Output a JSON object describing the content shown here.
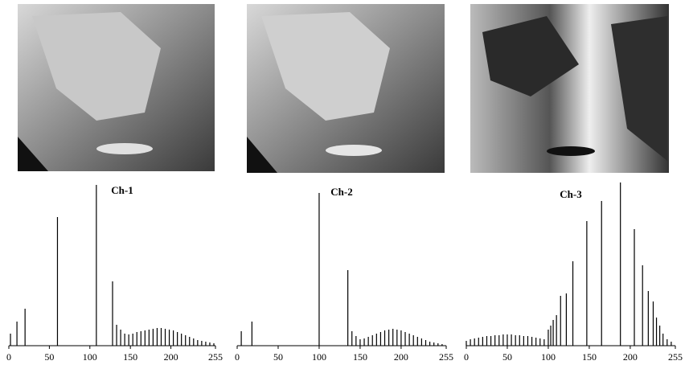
{
  "chart_data": [
    {
      "type": "bar",
      "title": "Ch-1",
      "color": "#000000",
      "x": [
        2,
        10,
        20,
        60,
        108,
        128,
        133,
        138,
        143,
        148,
        153,
        158,
        163,
        168,
        173,
        178,
        183,
        188,
        193,
        198,
        203,
        208,
        213,
        218,
        223,
        228,
        233,
        238,
        243,
        248,
        253
      ],
      "values": [
        15,
        30,
        46,
        160,
        200,
        80,
        26,
        20,
        15,
        14,
        15,
        17,
        18,
        19,
        20,
        21,
        22,
        22,
        21,
        20,
        19,
        17,
        15,
        13,
        11,
        9,
        7,
        6,
        5,
        4,
        3
      ],
      "xlim": [
        0,
        255
      ],
      "xticks": [
        0,
        50,
        100,
        150,
        200,
        255
      ],
      "ylim": [
        0,
        200
      ]
    },
    {
      "type": "bar",
      "title": "Ch-2",
      "color": "#000000",
      "x": [
        5,
        18,
        100,
        135,
        140,
        145,
        150,
        155,
        160,
        165,
        170,
        175,
        180,
        185,
        190,
        195,
        200,
        205,
        210,
        215,
        220,
        225,
        230,
        235,
        240,
        245,
        250
      ],
      "values": [
        18,
        30,
        190,
        94,
        18,
        12,
        8,
        9,
        11,
        13,
        15,
        17,
        19,
        20,
        21,
        20,
        19,
        17,
        15,
        13,
        11,
        9,
        7,
        5,
        4,
        3,
        2
      ],
      "xlim": [
        0,
        255
      ],
      "xticks": [
        0,
        50,
        100,
        150,
        200,
        255
      ],
      "ylim": [
        0,
        190
      ]
    },
    {
      "type": "bar",
      "title": "Ch-3",
      "color": "#000000",
      "x": [
        0,
        5,
        10,
        15,
        20,
        25,
        30,
        35,
        40,
        45,
        50,
        55,
        60,
        65,
        70,
        75,
        80,
        85,
        90,
        95,
        100,
        103,
        106,
        110,
        115,
        122,
        130,
        147,
        165,
        188,
        205,
        215,
        222,
        228,
        232,
        236,
        240,
        245,
        250
      ],
      "values": [
        6,
        8,
        9,
        10,
        11,
        12,
        12,
        13,
        13,
        14,
        14,
        14,
        13,
        13,
        12,
        12,
        11,
        10,
        9,
        8,
        20,
        25,
        32,
        38,
        62,
        65,
        105,
        155,
        180,
        203,
        145,
        100,
        68,
        55,
        35,
        25,
        15,
        8,
        5
      ],
      "xlim": [
        0,
        255
      ],
      "xticks": [
        0,
        50,
        100,
        150,
        200,
        255
      ],
      "ylim": [
        0,
        203
      ]
    }
  ]
}
